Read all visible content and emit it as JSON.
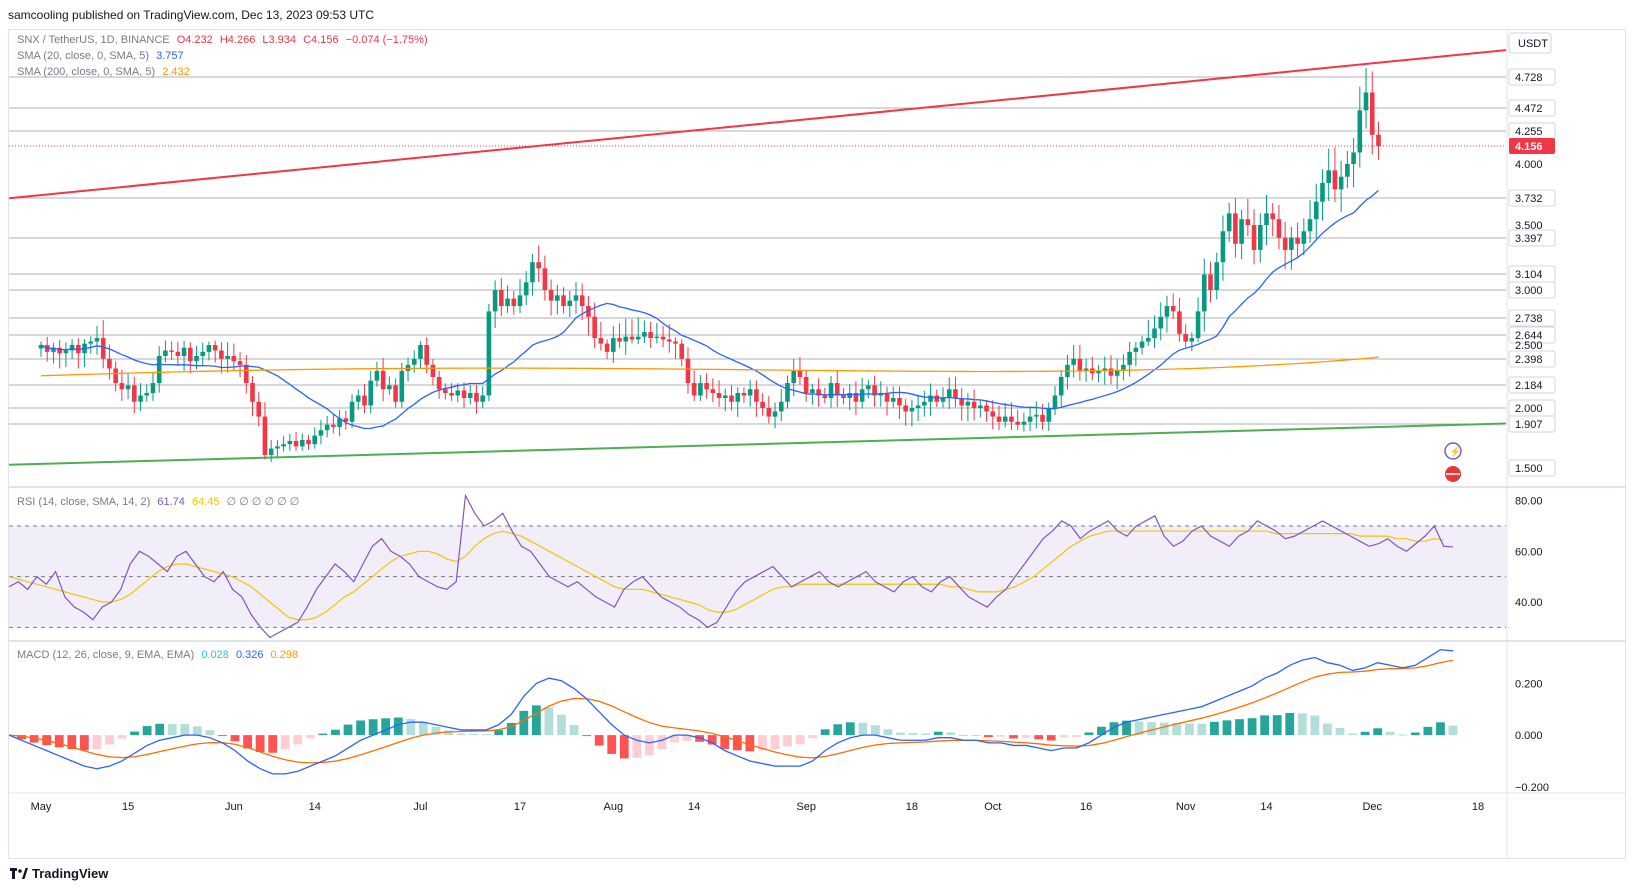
{
  "header": {
    "text": "samcooling published on TradingView.com, Dec 13, 2023 09:53 UTC"
  },
  "legend": {
    "symbol": "SNX / TetherUS, 1D, BINANCE",
    "o": "O4.232",
    "h": "H4.266",
    "l": "L3.934",
    "c": "C4.156",
    "chg": "−0.074 (−1.75%)",
    "sma20_label": "SMA (20, close, 0, SMA, 5)",
    "sma20_value": "3.757",
    "sma200_label": "SMA (200, close, 0, SMA, 5)",
    "sma200_value": "2.432",
    "rsi_label": "RSI (14, close, SMA, 14, 2)",
    "rsi_value": "61.74",
    "rsi_ma_value": "64.45",
    "rsi_extra": "∅ ∅ ∅ ∅ ∅ ∅",
    "macd_label": "MACD (12, 26, close, 9, EMA, EMA)",
    "macd_hist": "0.028",
    "macd_line": "0.326",
    "macd_signal": "0.298"
  },
  "footer": {
    "brand": "TradingView"
  },
  "colors": {
    "up": "#089981",
    "down": "#f23645",
    "sma20": "#2962ff",
    "sma200": "#ff9800",
    "rsi": "#7e57c2",
    "rsi_ma": "#f4c400",
    "resistance": "#f23645",
    "support": "#4caf50"
  },
  "chart_data": {
    "type": "line",
    "title": "SNX / TetherUS, 1D, BINANCE",
    "currency": "USDT",
    "price_axis": {
      "ticks": [
        "4.728",
        "4.472",
        "4.255",
        "4.156",
        "4.000",
        "3.732",
        "3.500",
        "3.397",
        "3.104",
        "3.000",
        "2.738",
        "2.644",
        "2.500",
        "2.398",
        "2.184",
        "2.000",
        "1.907",
        "1.500"
      ],
      "highlighted": [
        "4.728",
        "4.472",
        "4.255",
        "3.732",
        "3.397",
        "3.104",
        "3.000",
        "2.738",
        "2.644",
        "2.398",
        "2.184",
        "2.000",
        "1.907",
        "1.500"
      ],
      "last_price": "4.156",
      "levels": [
        4.728,
        4.472,
        4.255,
        3.732,
        3.397,
        3.104,
        3.0,
        2.738,
        2.644,
        2.398,
        2.184,
        2.0,
        1.907
      ]
    },
    "x_ticks": [
      "May",
      "15",
      "Jun",
      "14",
      "Jul",
      "17",
      "Aug",
      "14",
      "Sep",
      "18",
      "Oct",
      "16",
      "Nov",
      "14",
      "Dec",
      "18"
    ],
    "trendlines": [
      {
        "name": "resistance",
        "from": {
          "date": "2023-05-01",
          "price": 3.73
        },
        "to": {
          "date": "2023-12-18",
          "price": 4.95
        }
      },
      {
        "name": "support",
        "from": {
          "date": "2023-05-01",
          "price": 1.53
        },
        "to": {
          "date": "2023-12-18",
          "price": 1.91
        }
      }
    ],
    "close_series": {
      "start": "2023-05-01",
      "values": [
        2.5,
        2.45,
        2.48,
        2.44,
        2.46,
        2.5,
        2.44,
        2.52,
        2.55,
        2.6,
        2.4,
        2.32,
        2.2,
        2.15,
        2.18,
        2.05,
        2.1,
        2.12,
        2.2,
        2.42,
        2.46,
        2.45,
        2.42,
        2.48,
        2.38,
        2.42,
        2.45,
        2.5,
        2.46,
        2.4,
        2.42,
        2.38,
        2.35,
        2.2,
        2.05,
        1.95,
        1.62,
        1.68,
        1.7,
        1.72,
        1.75,
        1.7,
        1.76,
        1.72,
        1.8,
        1.85,
        1.9,
        1.88,
        1.94,
        1.92,
        2.05,
        2.1,
        2.02,
        2.22,
        2.3,
        2.15,
        2.18,
        2.05,
        2.3,
        2.35,
        2.4,
        2.5,
        2.35,
        2.25,
        2.15,
        2.12,
        2.1,
        2.14,
        2.08,
        2.12,
        2.05,
        2.1,
        2.8,
        3.0,
        2.85,
        2.92,
        2.85,
        2.95,
        3.05,
        3.2,
        3.15,
        3.0,
        2.9,
        2.95,
        2.85,
        2.9,
        2.95,
        2.85,
        2.75,
        2.6,
        2.52,
        2.45,
        2.6,
        2.55,
        2.62,
        2.58,
        2.62,
        2.66,
        2.6,
        2.62,
        2.58,
        2.55,
        2.52,
        2.4,
        2.2,
        2.1,
        2.2,
        2.15,
        2.12,
        2.08,
        2.1,
        2.05,
        2.12,
        2.1,
        2.15,
        2.05,
        2.0,
        1.95,
        1.98,
        2.05,
        2.2,
        2.3,
        2.25,
        2.12,
        2.15,
        2.1,
        2.08,
        2.2,
        2.1,
        2.08,
        2.12,
        2.05,
        2.15,
        2.18,
        2.1,
        2.12,
        2.05,
        2.08,
        2.02,
        1.98,
        2.0,
        2.02,
        2.05,
        2.1,
        2.05,
        2.08,
        2.15,
        2.08,
        2.02,
        2.05,
        2.0,
        2.02,
        1.98,
        1.95,
        1.92,
        1.95,
        1.92,
        1.9,
        1.92,
        1.95,
        1.96,
        1.92,
        2.0,
        2.1,
        2.25,
        2.35,
        2.4,
        2.3,
        2.32,
        2.28,
        2.3,
        2.32,
        2.26,
        2.3,
        2.35,
        2.45,
        2.48,
        2.55,
        2.6,
        2.68,
        2.75,
        2.85,
        2.8,
        2.65,
        2.55,
        2.6,
        2.8,
        3.1,
        3.0,
        3.2,
        3.45,
        3.6,
        3.35,
        3.55,
        3.5,
        3.3,
        3.5,
        3.6,
        3.55,
        3.4,
        3.3,
        3.4,
        3.35,
        3.45,
        3.55,
        3.7,
        3.85,
        3.95,
        3.8,
        3.9,
        4.0,
        4.1,
        4.45,
        4.6,
        4.23,
        4.156
      ]
    },
    "sma200_series": {
      "start_price": 2.26,
      "end_price": 2.432
    },
    "rsi": {
      "ylim": [
        25,
        85
      ],
      "ticks": [
        80,
        60,
        40
      ],
      "bands": [
        70,
        50,
        30
      ],
      "values": [
        46,
        48,
        45,
        50,
        47,
        52,
        42,
        38,
        36,
        33,
        38,
        40,
        45,
        55,
        60,
        58,
        55,
        52,
        58,
        60,
        55,
        50,
        48,
        52,
        45,
        42,
        35,
        30,
        26,
        28,
        30,
        32,
        38,
        45,
        50,
        55,
        52,
        48,
        55,
        62,
        65,
        60,
        58,
        55,
        50,
        48,
        46,
        45,
        48,
        82,
        75,
        70,
        72,
        75,
        68,
        62,
        60,
        55,
        50,
        48,
        46,
        48,
        45,
        42,
        40,
        38,
        45,
        48,
        50,
        46,
        42,
        40,
        38,
        35,
        33,
        30,
        32,
        38,
        44,
        48,
        50,
        52,
        54,
        50,
        46,
        48,
        50,
        52,
        48,
        46,
        48,
        50,
        52,
        48,
        46,
        44,
        48,
        50,
        46,
        44,
        48,
        50,
        46,
        42,
        40,
        38,
        42,
        45,
        50,
        55,
        60,
        65,
        68,
        72,
        70,
        65,
        68,
        70,
        72,
        68,
        66,
        70,
        72,
        74,
        66,
        62,
        64,
        68,
        70,
        66,
        64,
        62,
        66,
        68,
        72,
        70,
        68,
        65,
        66,
        68,
        70,
        72,
        70,
        68,
        66,
        64,
        62,
        63,
        65,
        62,
        60,
        63,
        66,
        70,
        62,
        61.74
      ],
      "ma_values": [
        50,
        49,
        48,
        47,
        46,
        45,
        44,
        43,
        42,
        41,
        40,
        40,
        41,
        43,
        46,
        49,
        52,
        54,
        55,
        55,
        54,
        53,
        52,
        51,
        50,
        48,
        46,
        43,
        40,
        37,
        34,
        33,
        33,
        34,
        36,
        39,
        42,
        44,
        47,
        50,
        53,
        56,
        58,
        59,
        60,
        60,
        59,
        57,
        56,
        58,
        62,
        65,
        67,
        68,
        67,
        66,
        64,
        62,
        60,
        58,
        56,
        54,
        52,
        50,
        48,
        46,
        45,
        45,
        45,
        44,
        43,
        42,
        41,
        40,
        39,
        37,
        36,
        36,
        37,
        39,
        41,
        43,
        45,
        46,
        46,
        47,
        47,
        47,
        47,
        47,
        47,
        47,
        47,
        47,
        47,
        47,
        47,
        47,
        47,
        47,
        47,
        46,
        46,
        45,
        44,
        44,
        44,
        45,
        46,
        48,
        50,
        53,
        56,
        59,
        62,
        64,
        66,
        67,
        68,
        68,
        68,
        68,
        68,
        68,
        68,
        68,
        68,
        68,
        68,
        68,
        68,
        68,
        68,
        68,
        68,
        68,
        67,
        67,
        67,
        67,
        67,
        67,
        67,
        67,
        67,
        66,
        66,
        66,
        66,
        65,
        65,
        64,
        64,
        65,
        64.45
      ]
    },
    "macd": {
      "ylim": [
        -0.22,
        0.36
      ],
      "ticks": [
        0.2,
        0.0,
        -0.2
      ],
      "line": [
        0.0,
        -0.02,
        -0.04,
        -0.06,
        -0.08,
        -0.1,
        -0.12,
        -0.13,
        -0.12,
        -0.1,
        -0.07,
        -0.04,
        -0.02,
        -0.01,
        0.0,
        0.0,
        -0.01,
        -0.03,
        -0.06,
        -0.1,
        -0.13,
        -0.15,
        -0.15,
        -0.14,
        -0.12,
        -0.1,
        -0.08,
        -0.05,
        -0.02,
        0.0,
        0.02,
        0.04,
        0.05,
        0.05,
        0.04,
        0.03,
        0.02,
        0.02,
        0.02,
        0.04,
        0.08,
        0.15,
        0.2,
        0.22,
        0.21,
        0.18,
        0.14,
        0.09,
        0.04,
        0.0,
        -0.02,
        -0.03,
        -0.02,
        0.0,
        0.0,
        -0.01,
        -0.03,
        -0.06,
        -0.08,
        -0.1,
        -0.11,
        -0.12,
        -0.12,
        -0.12,
        -0.1,
        -0.06,
        -0.03,
        -0.01,
        0.0,
        0.0,
        -0.01,
        -0.02,
        -0.02,
        -0.02,
        -0.01,
        -0.01,
        -0.02,
        -0.02,
        -0.03,
        -0.03,
        -0.04,
        -0.04,
        -0.05,
        -0.06,
        -0.05,
        -0.05,
        -0.03,
        0.0,
        0.03,
        0.05,
        0.06,
        0.07,
        0.08,
        0.09,
        0.1,
        0.11,
        0.13,
        0.15,
        0.17,
        0.19,
        0.22,
        0.24,
        0.27,
        0.29,
        0.3,
        0.28,
        0.27,
        0.25,
        0.26,
        0.28,
        0.27,
        0.26,
        0.27,
        0.3,
        0.33,
        0.326
      ]
    },
    "x_label": "",
    "y_label": ""
  }
}
